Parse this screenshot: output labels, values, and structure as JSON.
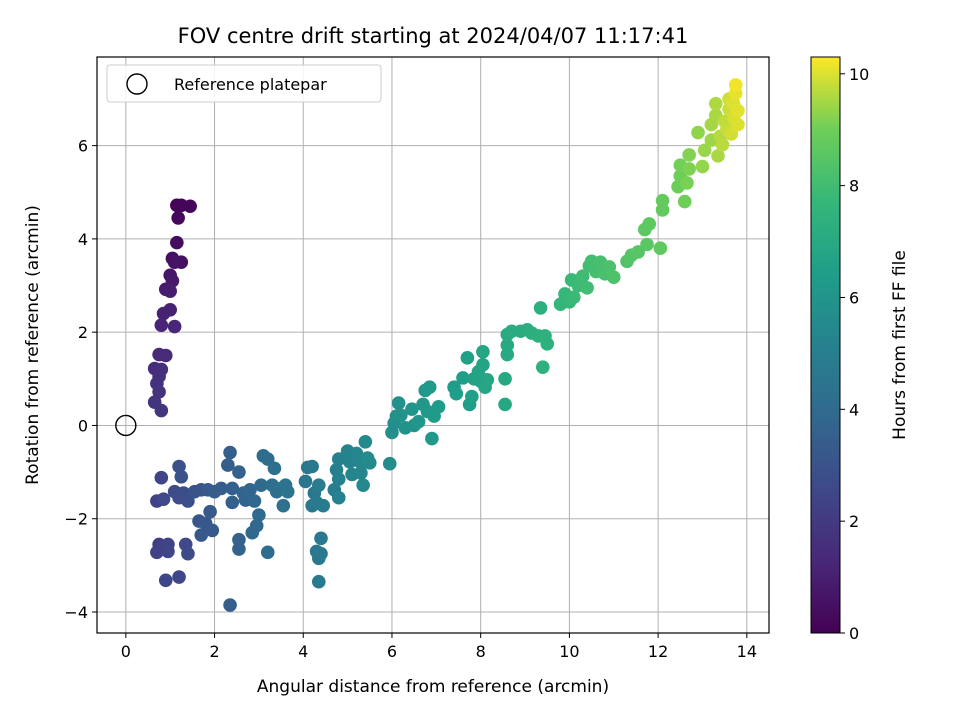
{
  "chart_data": {
    "type": "scatter",
    "title": "FOV centre drift starting at 2024/04/07 11:17:41",
    "xlabel": "Angular distance from reference (arcmin)",
    "ylabel": "Rotation from reference (arcmin)",
    "xlim": [
      -0.65,
      14.5
    ],
    "ylim": [
      -4.45,
      7.9
    ],
    "xticks": [
      0,
      2,
      4,
      6,
      8,
      10,
      12,
      14
    ],
    "yticks": [
      -4,
      -2,
      0,
      2,
      4,
      6
    ],
    "grid": true,
    "legend": {
      "placement": "top-left",
      "label": "Reference platepar"
    },
    "reference_point": {
      "x": 0,
      "y": 0
    },
    "colorbar": {
      "label": "Hours from first FF file",
      "min": 0,
      "max": 10.3,
      "ticks": [
        0,
        2,
        4,
        6,
        8,
        10
      ],
      "colormap": "viridis"
    },
    "series": [
      {
        "points": [
          {
            "x": 1.15,
            "y": 4.72,
            "c": 0.05
          },
          {
            "x": 1.25,
            "y": 4.72,
            "c": 0.1
          },
          {
            "x": 1.45,
            "y": 4.7,
            "c": 0.15
          },
          {
            "x": 1.18,
            "y": 4.45,
            "c": 0.2
          },
          {
            "x": 1.15,
            "y": 3.92,
            "c": 0.35
          },
          {
            "x": 1.05,
            "y": 3.58,
            "c": 0.45
          },
          {
            "x": 1.25,
            "y": 3.5,
            "c": 0.5
          },
          {
            "x": 1.1,
            "y": 3.5,
            "c": 0.55
          },
          {
            "x": 1.0,
            "y": 3.22,
            "c": 0.7
          },
          {
            "x": 1.05,
            "y": 3.1,
            "c": 0.8
          },
          {
            "x": 0.9,
            "y": 2.92,
            "c": 0.9
          },
          {
            "x": 1.0,
            "y": 2.88,
            "c": 0.95
          },
          {
            "x": 1.0,
            "y": 2.48,
            "c": 1.05
          },
          {
            "x": 0.85,
            "y": 2.4,
            "c": 1.1
          },
          {
            "x": 0.8,
            "y": 2.15,
            "c": 1.2
          },
          {
            "x": 1.1,
            "y": 2.12,
            "c": 1.25
          },
          {
            "x": 0.75,
            "y": 1.52,
            "c": 1.35
          },
          {
            "x": 0.9,
            "y": 1.5,
            "c": 1.4
          },
          {
            "x": 0.65,
            "y": 1.22,
            "c": 1.5
          },
          {
            "x": 0.8,
            "y": 1.2,
            "c": 1.55
          },
          {
            "x": 0.75,
            "y": 1.05,
            "c": 1.6
          },
          {
            "x": 0.7,
            "y": 0.9,
            "c": 1.65
          },
          {
            "x": 0.75,
            "y": 0.72,
            "c": 1.7
          },
          {
            "x": 0.65,
            "y": 0.5,
            "c": 1.75
          },
          {
            "x": 0.8,
            "y": 0.32,
            "c": 1.8
          },
          {
            "x": 0.7,
            "y": -1.62,
            "c": 2.3
          },
          {
            "x": 0.8,
            "y": -1.12,
            "c": 2.4
          },
          {
            "x": 0.75,
            "y": -2.55,
            "c": 2.2
          },
          {
            "x": 0.7,
            "y": -2.72,
            "c": 2.25
          },
          {
            "x": 0.85,
            "y": -2.62,
            "c": 2.3
          },
          {
            "x": 0.95,
            "y": -2.55,
            "c": 2.35
          },
          {
            "x": 0.95,
            "y": -2.7,
            "c": 2.4
          },
          {
            "x": 0.9,
            "y": -3.32,
            "c": 2.45
          },
          {
            "x": 1.2,
            "y": -3.25,
            "c": 2.5
          },
          {
            "x": 0.85,
            "y": -1.58,
            "c": 2.6
          },
          {
            "x": 1.1,
            "y": -1.42,
            "c": 2.7
          },
          {
            "x": 1.2,
            "y": -1.55,
            "c": 2.75
          },
          {
            "x": 1.3,
            "y": -1.45,
            "c": 2.8
          },
          {
            "x": 1.4,
            "y": -1.62,
            "c": 2.85
          },
          {
            "x": 1.2,
            "y": -0.88,
            "c": 2.9
          },
          {
            "x": 1.25,
            "y": -1.1,
            "c": 2.95
          },
          {
            "x": 1.35,
            "y": -2.55,
            "c": 2.6
          },
          {
            "x": 1.4,
            "y": -2.75,
            "c": 2.65
          },
          {
            "x": 1.55,
            "y": -1.42,
            "c": 3.0
          },
          {
            "x": 1.7,
            "y": -1.38,
            "c": 3.05
          },
          {
            "x": 1.65,
            "y": -2.05,
            "c": 3.1
          },
          {
            "x": 1.7,
            "y": -2.35,
            "c": 3.15
          },
          {
            "x": 1.8,
            "y": -2.1,
            "c": 3.2
          },
          {
            "x": 1.9,
            "y": -1.85,
            "c": 3.25
          },
          {
            "x": 1.95,
            "y": -2.25,
            "c": 3.3
          },
          {
            "x": 1.85,
            "y": -1.38,
            "c": 3.3
          },
          {
            "x": 2.0,
            "y": -1.42,
            "c": 3.35
          },
          {
            "x": 2.15,
            "y": -1.35,
            "c": 3.4
          },
          {
            "x": 2.3,
            "y": -0.85,
            "c": 3.45
          },
          {
            "x": 2.35,
            "y": -0.58,
            "c": 3.5
          },
          {
            "x": 2.4,
            "y": -1.35,
            "c": 3.5
          },
          {
            "x": 2.4,
            "y": -1.65,
            "c": 3.55
          },
          {
            "x": 2.35,
            "y": -3.85,
            "c": 3.4
          },
          {
            "x": 2.55,
            "y": -1.0,
            "c": 3.6
          },
          {
            "x": 2.55,
            "y": -2.45,
            "c": 3.6
          },
          {
            "x": 2.55,
            "y": -2.65,
            "c": 3.65
          },
          {
            "x": 2.65,
            "y": -1.45,
            "c": 3.7
          },
          {
            "x": 2.7,
            "y": -1.6,
            "c": 3.75
          },
          {
            "x": 2.8,
            "y": -1.38,
            "c": 3.8
          },
          {
            "x": 2.85,
            "y": -2.3,
            "c": 3.85
          },
          {
            "x": 2.9,
            "y": -1.62,
            "c": 3.85
          },
          {
            "x": 2.95,
            "y": -2.15,
            "c": 3.9
          },
          {
            "x": 3.0,
            "y": -1.92,
            "c": 3.95
          },
          {
            "x": 3.05,
            "y": -1.28,
            "c": 4.0
          },
          {
            "x": 3.1,
            "y": -0.65,
            "c": 4.05
          },
          {
            "x": 3.2,
            "y": -0.72,
            "c": 4.1
          },
          {
            "x": 3.2,
            "y": -2.72,
            "c": 4.1
          },
          {
            "x": 3.3,
            "y": -1.28,
            "c": 4.15
          },
          {
            "x": 3.35,
            "y": -0.92,
            "c": 4.2
          },
          {
            "x": 3.4,
            "y": -1.42,
            "c": 4.2
          },
          {
            "x": 3.5,
            "y": -1.35,
            "c": 4.25
          },
          {
            "x": 3.55,
            "y": -1.72,
            "c": 4.3
          },
          {
            "x": 3.6,
            "y": -1.28,
            "c": 4.35
          },
          {
            "x": 3.65,
            "y": -1.42,
            "c": 4.4
          },
          {
            "x": 4.05,
            "y": -1.2,
            "c": 4.5
          },
          {
            "x": 4.1,
            "y": -0.9,
            "c": 4.55
          },
          {
            "x": 4.2,
            "y": -0.88,
            "c": 4.6
          },
          {
            "x": 4.2,
            "y": -1.72,
            "c": 4.6
          },
          {
            "x": 4.25,
            "y": -1.45,
            "c": 4.65
          },
          {
            "x": 4.3,
            "y": -1.65,
            "c": 4.7
          },
          {
            "x": 4.3,
            "y": -2.7,
            "c": 4.6
          },
          {
            "x": 4.35,
            "y": -2.85,
            "c": 4.65
          },
          {
            "x": 4.4,
            "y": -2.75,
            "c": 4.7
          },
          {
            "x": 4.4,
            "y": -2.42,
            "c": 4.7
          },
          {
            "x": 4.35,
            "y": -3.35,
            "c": 4.75
          },
          {
            "x": 4.35,
            "y": -1.28,
            "c": 4.8
          },
          {
            "x": 4.45,
            "y": -1.72,
            "c": 4.85
          },
          {
            "x": 4.7,
            "y": -1.38,
            "c": 4.9
          },
          {
            "x": 4.75,
            "y": -0.95,
            "c": 5.0
          },
          {
            "x": 4.8,
            "y": -0.72,
            "c": 5.05
          },
          {
            "x": 4.8,
            "y": -1.15,
            "c": 5.1
          },
          {
            "x": 4.8,
            "y": -1.55,
            "c": 5.15
          },
          {
            "x": 5.0,
            "y": -0.55,
            "c": 5.2
          },
          {
            "x": 5.05,
            "y": -0.78,
            "c": 5.25
          },
          {
            "x": 5.1,
            "y": -1.05,
            "c": 5.3
          },
          {
            "x": 5.2,
            "y": -0.6,
            "c": 5.3
          },
          {
            "x": 5.3,
            "y": -0.8,
            "c": 5.35
          },
          {
            "x": 5.3,
            "y": -1.02,
            "c": 5.4
          },
          {
            "x": 5.35,
            "y": -1.28,
            "c": 5.45
          },
          {
            "x": 5.4,
            "y": -0.35,
            "c": 5.5
          },
          {
            "x": 5.45,
            "y": -0.7,
            "c": 5.5
          },
          {
            "x": 5.5,
            "y": -0.8,
            "c": 5.55
          },
          {
            "x": 5.95,
            "y": -0.82,
            "c": 5.6
          },
          {
            "x": 6.0,
            "y": -0.15,
            "c": 5.7
          },
          {
            "x": 6.05,
            "y": 0.05,
            "c": 5.75
          },
          {
            "x": 6.1,
            "y": 0.2,
            "c": 5.8
          },
          {
            "x": 6.15,
            "y": 0.48,
            "c": 5.85
          },
          {
            "x": 6.2,
            "y": 0.22,
            "c": 5.9
          },
          {
            "x": 6.3,
            "y": -0.05,
            "c": 5.95
          },
          {
            "x": 6.45,
            "y": 0.35,
            "c": 6.0
          },
          {
            "x": 6.5,
            "y": 0.0,
            "c": 6.0
          },
          {
            "x": 6.6,
            "y": 0.08,
            "c": 6.05
          },
          {
            "x": 6.7,
            "y": 0.45,
            "c": 6.1
          },
          {
            "x": 6.75,
            "y": 0.75,
            "c": 6.15
          },
          {
            "x": 6.8,
            "y": 0.3,
            "c": 6.2
          },
          {
            "x": 6.85,
            "y": 0.82,
            "c": 6.25
          },
          {
            "x": 6.9,
            "y": -0.28,
            "c": 6.2
          },
          {
            "x": 6.95,
            "y": 0.2,
            "c": 6.3
          },
          {
            "x": 7.05,
            "y": 0.4,
            "c": 6.35
          },
          {
            "x": 7.4,
            "y": 0.82,
            "c": 6.4
          },
          {
            "x": 7.45,
            "y": 0.68,
            "c": 6.45
          },
          {
            "x": 7.6,
            "y": 1.02,
            "c": 6.5
          },
          {
            "x": 7.7,
            "y": 1.45,
            "c": 6.55
          },
          {
            "x": 7.75,
            "y": 0.45,
            "c": 6.5
          },
          {
            "x": 7.8,
            "y": 0.62,
            "c": 6.55
          },
          {
            "x": 7.85,
            "y": 1.0,
            "c": 6.6
          },
          {
            "x": 7.95,
            "y": 1.15,
            "c": 6.65
          },
          {
            "x": 8.0,
            "y": 0.95,
            "c": 6.7
          },
          {
            "x": 8.05,
            "y": 1.3,
            "c": 6.75
          },
          {
            "x": 8.05,
            "y": 1.58,
            "c": 6.8
          },
          {
            "x": 8.1,
            "y": 0.82,
            "c": 6.8
          },
          {
            "x": 8.15,
            "y": 0.98,
            "c": 6.85
          },
          {
            "x": 8.55,
            "y": 0.45,
            "c": 6.9
          },
          {
            "x": 8.55,
            "y": 1.0,
            "c": 6.9
          },
          {
            "x": 8.6,
            "y": 1.52,
            "c": 6.95
          },
          {
            "x": 8.6,
            "y": 1.72,
            "c": 7.0
          },
          {
            "x": 8.6,
            "y": 1.95,
            "c": 7.05
          },
          {
            "x": 8.7,
            "y": 2.02,
            "c": 7.1
          },
          {
            "x": 8.9,
            "y": 2.02,
            "c": 7.15
          },
          {
            "x": 9.05,
            "y": 2.05,
            "c": 7.2
          },
          {
            "x": 9.15,
            "y": 1.98,
            "c": 7.25
          },
          {
            "x": 9.3,
            "y": 1.92,
            "c": 7.3
          },
          {
            "x": 9.35,
            "y": 2.52,
            "c": 7.3
          },
          {
            "x": 9.4,
            "y": 1.25,
            "c": 7.35
          },
          {
            "x": 9.45,
            "y": 1.92,
            "c": 7.35
          },
          {
            "x": 9.5,
            "y": 1.75,
            "c": 7.4
          },
          {
            "x": 9.8,
            "y": 2.6,
            "c": 7.6
          },
          {
            "x": 9.9,
            "y": 2.82,
            "c": 7.7
          },
          {
            "x": 10.0,
            "y": 2.65,
            "c": 7.75
          },
          {
            "x": 10.05,
            "y": 3.12,
            "c": 7.8
          },
          {
            "x": 10.1,
            "y": 2.75,
            "c": 7.85
          },
          {
            "x": 10.2,
            "y": 3.0,
            "c": 7.9
          },
          {
            "x": 10.3,
            "y": 3.2,
            "c": 7.95
          },
          {
            "x": 10.4,
            "y": 2.95,
            "c": 8.0
          },
          {
            "x": 10.45,
            "y": 3.42,
            "c": 8.0
          },
          {
            "x": 10.5,
            "y": 3.52,
            "c": 8.05
          },
          {
            "x": 10.6,
            "y": 3.3,
            "c": 8.1
          },
          {
            "x": 10.7,
            "y": 3.5,
            "c": 8.15
          },
          {
            "x": 10.8,
            "y": 3.25,
            "c": 8.2
          },
          {
            "x": 10.9,
            "y": 3.4,
            "c": 8.25
          },
          {
            "x": 11.0,
            "y": 3.18,
            "c": 8.3
          },
          {
            "x": 11.3,
            "y": 3.52,
            "c": 8.4
          },
          {
            "x": 11.4,
            "y": 3.65,
            "c": 8.45
          },
          {
            "x": 11.55,
            "y": 3.72,
            "c": 8.5
          },
          {
            "x": 11.7,
            "y": 4.2,
            "c": 8.6
          },
          {
            "x": 11.75,
            "y": 3.88,
            "c": 8.55
          },
          {
            "x": 11.8,
            "y": 4.32,
            "c": 8.65
          },
          {
            "x": 12.05,
            "y": 3.8,
            "c": 8.7
          },
          {
            "x": 12.1,
            "y": 4.82,
            "c": 8.8
          },
          {
            "x": 12.1,
            "y": 4.62,
            "c": 8.75
          },
          {
            "x": 12.45,
            "y": 5.12,
            "c": 8.95
          },
          {
            "x": 12.5,
            "y": 5.35,
            "c": 9.0
          },
          {
            "x": 12.5,
            "y": 5.58,
            "c": 9.05
          },
          {
            "x": 12.6,
            "y": 4.8,
            "c": 9.0
          },
          {
            "x": 12.65,
            "y": 5.2,
            "c": 9.1
          },
          {
            "x": 12.7,
            "y": 5.5,
            "c": 9.15
          },
          {
            "x": 12.7,
            "y": 5.8,
            "c": 9.2
          },
          {
            "x": 12.9,
            "y": 6.28,
            "c": 9.3
          },
          {
            "x": 13.0,
            "y": 5.55,
            "c": 9.35
          },
          {
            "x": 13.05,
            "y": 5.9,
            "c": 9.4
          },
          {
            "x": 13.2,
            "y": 6.12,
            "c": 9.45
          },
          {
            "x": 13.2,
            "y": 6.45,
            "c": 9.5
          },
          {
            "x": 13.3,
            "y": 6.65,
            "c": 9.55
          },
          {
            "x": 13.3,
            "y": 6.9,
            "c": 9.6
          },
          {
            "x": 13.35,
            "y": 5.78,
            "c": 9.55
          },
          {
            "x": 13.4,
            "y": 6.2,
            "c": 9.65
          },
          {
            "x": 13.45,
            "y": 6.02,
            "c": 9.7
          },
          {
            "x": 13.5,
            "y": 6.52,
            "c": 9.75
          },
          {
            "x": 13.55,
            "y": 6.35,
            "c": 9.8
          },
          {
            "x": 13.6,
            "y": 6.78,
            "c": 9.85
          },
          {
            "x": 13.6,
            "y": 7.0,
            "c": 9.9
          },
          {
            "x": 13.65,
            "y": 6.25,
            "c": 9.9
          },
          {
            "x": 13.7,
            "y": 6.6,
            "c": 9.95
          },
          {
            "x": 13.7,
            "y": 6.9,
            "c": 10.0
          },
          {
            "x": 13.75,
            "y": 7.12,
            "c": 10.1
          },
          {
            "x": 13.75,
            "y": 7.3,
            "c": 10.2
          },
          {
            "x": 13.8,
            "y": 6.75,
            "c": 10.05
          },
          {
            "x": 13.8,
            "y": 6.45,
            "c": 10.0
          }
        ]
      }
    ]
  }
}
